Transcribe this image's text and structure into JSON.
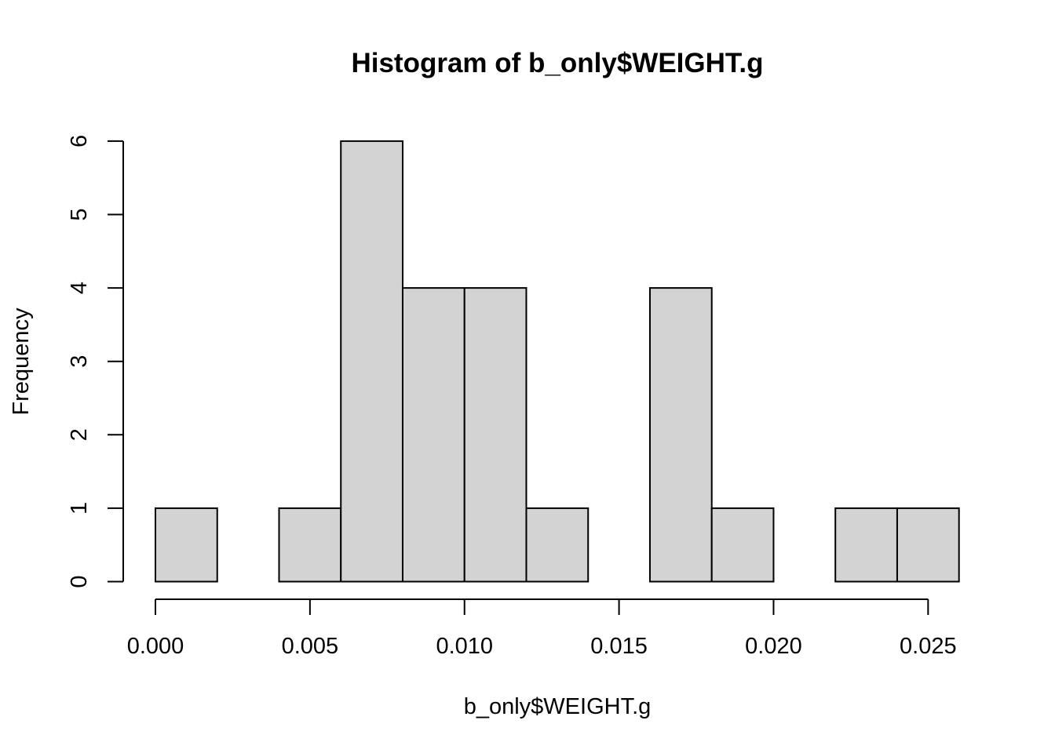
{
  "chart_data": {
    "type": "histogram",
    "title": "Histogram of b_only$WEIGHT.g",
    "xlabel": "b_only$WEIGHT.g",
    "ylabel": "Frequency",
    "bins": [
      {
        "start": 0.0,
        "end": 0.002,
        "count": 1
      },
      {
        "start": 0.002,
        "end": 0.004,
        "count": 0
      },
      {
        "start": 0.004,
        "end": 0.006,
        "count": 1
      },
      {
        "start": 0.006,
        "end": 0.008,
        "count": 6
      },
      {
        "start": 0.008,
        "end": 0.01,
        "count": 4
      },
      {
        "start": 0.01,
        "end": 0.012,
        "count": 4
      },
      {
        "start": 0.012,
        "end": 0.014,
        "count": 1
      },
      {
        "start": 0.014,
        "end": 0.016,
        "count": 0
      },
      {
        "start": 0.016,
        "end": 0.018,
        "count": 4
      },
      {
        "start": 0.018,
        "end": 0.02,
        "count": 1
      },
      {
        "start": 0.02,
        "end": 0.022,
        "count": 0
      },
      {
        "start": 0.022,
        "end": 0.024,
        "count": 1
      },
      {
        "start": 0.024,
        "end": 0.026,
        "count": 1
      }
    ],
    "xlim": [
      0,
      0.026
    ],
    "ylim": [
      0,
      6
    ],
    "x_ticks": [
      0.0,
      0.005,
      0.01,
      0.015,
      0.02,
      0.025
    ],
    "x_tick_labels": [
      "0.000",
      "0.005",
      "0.010",
      "0.015",
      "0.020",
      "0.025"
    ],
    "y_ticks": [
      0,
      1,
      2,
      3,
      4,
      5,
      6
    ],
    "y_tick_labels": [
      "0",
      "1",
      "2",
      "3",
      "4",
      "5",
      "6"
    ],
    "bar_color": "#d3d3d3",
    "border_color": "#000000",
    "grid": false
  }
}
